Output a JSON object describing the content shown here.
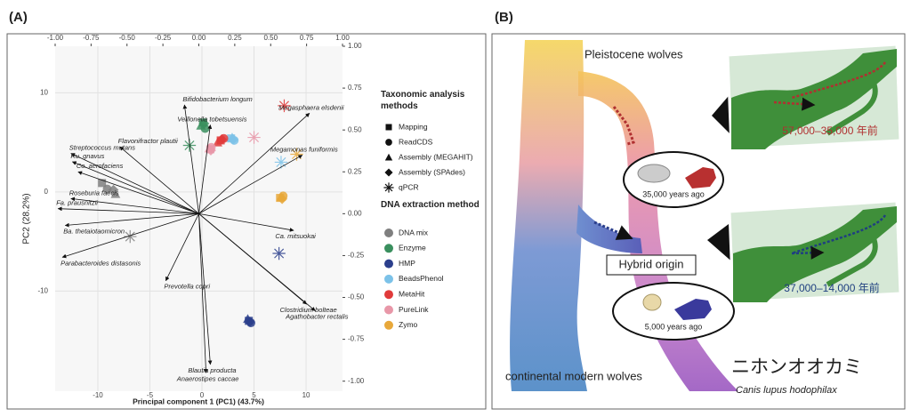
{
  "panel_labels": [
    "(A)",
    "(B)"
  ],
  "chart_data": {
    "type": "biplot",
    "xlabel": "Principal component 1 (PC1) (43.7%)",
    "ylabel": "PC2 (28.2%)",
    "xlim": [
      -14.1,
      13.5
    ],
    "ylim": [
      -20.1,
      14.7
    ],
    "xticks": [
      -10,
      -5,
      0,
      5,
      10
    ],
    "yticks": [
      -10,
      0,
      10
    ],
    "x2lim": [
      -1,
      1
    ],
    "y2lim": [
      -1.06,
      1
    ],
    "x2ticks": [
      {
        "value": -1,
        "label": "-1.00"
      },
      {
        "value": -0.75,
        "label": "-0.75"
      },
      {
        "value": -0.5,
        "label": "-0.50"
      },
      {
        "value": -0.25,
        "label": "-0.25"
      },
      {
        "value": 0,
        "label": "0.00"
      },
      {
        "value": 0.25,
        "label": "0.25"
      },
      {
        "value": 0.5,
        "label": "0.50"
      },
      {
        "value": 0.75,
        "label": "0.75"
      },
      {
        "value": 1,
        "label": "1.00"
      }
    ],
    "y2ticks": [
      {
        "value": 1,
        "label": "1.00"
      },
      {
        "value": 0.75,
        "label": "0.75"
      },
      {
        "value": 0.5,
        "label": "0.50"
      },
      {
        "value": 0.25,
        "label": "0.25"
      },
      {
        "value": 0,
        "label": "0.00"
      },
      {
        "value": -0.25,
        "label": "-0.25"
      },
      {
        "value": -0.5,
        "label": "-0.50"
      },
      {
        "value": -0.75,
        "label": "-0.75"
      },
      {
        "value": -1,
        "label": "-1.00"
      }
    ],
    "grid": true,
    "methods": {
      "title": "Taxonomic analysis methods",
      "names": [
        "Mapping",
        "ReadCDS",
        "Assembly (MEGAHIT)",
        "Assembly (SPAdes)",
        "qPCR"
      ]
    },
    "extraction_title": "DNA extraction method",
    "series": [
      {
        "name": "DNA mix",
        "color": "#7f7f7f",
        "x": [
          -9.6,
          -9.1,
          -8.3,
          -8.5,
          -6.9
        ],
        "y": [
          0.9,
          0.3,
          -0.2,
          0.2,
          -4.5
        ],
        "method": [
          0,
          1,
          2,
          3,
          4
        ]
      },
      {
        "name": "Enzyme",
        "color": "#3a8f5e",
        "x": [
          0.1,
          0.3,
          -0.1,
          0.2,
          -1.2
        ],
        "y": [
          7.0,
          6.4,
          6.7,
          6.9,
          4.7
        ],
        "method": [
          0,
          1,
          2,
          3,
          4
        ]
      },
      {
        "name": "HMP",
        "color": "#2b3f8c",
        "x": [
          4.5,
          4.7,
          4.4,
          4.6,
          7.4
        ],
        "y": [
          -13.0,
          -13.2,
          -12.8,
          -13.1,
          -6.2
        ],
        "method": [
          0,
          1,
          2,
          3,
          4
        ]
      },
      {
        "name": "BeadsPhenol",
        "color": "#7cc2e8",
        "x": [
          2.8,
          3.1,
          2.9,
          3.0,
          7.6
        ],
        "y": [
          5.4,
          5.2,
          5.5,
          5.3,
          3.0
        ],
        "method": [
          0,
          1,
          2,
          3,
          4
        ]
      },
      {
        "name": "MetaHit",
        "color": "#e03a3a",
        "x": [
          1.8,
          2.1,
          1.5,
          1.9,
          7.9
        ],
        "y": [
          5.2,
          5.4,
          5.0,
          5.3,
          8.7
        ],
        "method": [
          0,
          1,
          2,
          3,
          4
        ]
      },
      {
        "name": "PureLink",
        "color": "#e897a8",
        "x": [
          0.8,
          0.9,
          0.7,
          0.85,
          5.0
        ],
        "y": [
          4.3,
          4.5,
          4.4,
          4.2,
          5.5
        ],
        "method": [
          0,
          1,
          2,
          3,
          4
        ]
      },
      {
        "name": "Zymo",
        "color": "#e8a83a",
        "x": [
          7.5,
          7.8,
          7.6,
          7.7,
          9.1
        ],
        "y": [
          -0.6,
          -0.4,
          -0.5,
          -0.7,
          3.8
        ],
        "method": [
          0,
          1,
          2,
          3,
          4
        ]
      }
    ],
    "loadings": [
      {
        "name": "Bifidobacterium longum",
        "x": -0.1,
        "y": 0.65
      },
      {
        "name": "Veillonella tobetsuensis",
        "x": 0.08,
        "y": 0.53
      },
      {
        "name": "Megasphaera elsdenii",
        "x": 0.77,
        "y": 0.6
      },
      {
        "name": "Flavonifractor plautii",
        "x": -0.55,
        "y": 0.4
      },
      {
        "name": "Streptococcus mutans",
        "x": -0.89,
        "y": 0.36
      },
      {
        "name": "Megamonas funiformis",
        "x": 0.72,
        "y": 0.35
      },
      {
        "name": "Ru. gnavus",
        "x": -0.88,
        "y": 0.31
      },
      {
        "name": "Co. aerofaciens",
        "x": -0.84,
        "y": 0.25
      },
      {
        "name": "Roseburia faecis",
        "x": -0.89,
        "y": 0.09
      },
      {
        "name": "Fa. prausnitzii",
        "x": -0.98,
        "y": 0.03
      },
      {
        "name": "Ba. thetaiotaomicron",
        "x": -0.93,
        "y": -0.07
      },
      {
        "name": "Ca. mitsuokai",
        "x": 0.66,
        "y": -0.1
      },
      {
        "name": "Parabacteroides distasonis",
        "x": -0.95,
        "y": -0.26
      },
      {
        "name": "Prevotella copri",
        "x": -0.23,
        "y": -0.4
      },
      {
        "name": "Clostridium bolteae",
        "x": 0.75,
        "y": -0.54
      },
      {
        "name": "Agathobacter rectalis",
        "x": 0.81,
        "y": -0.58
      },
      {
        "name": "Anaerostipes caccae",
        "x": 0.05,
        "y": -0.95
      },
      {
        "name": "Blautia producta",
        "x": 0.08,
        "y": -0.9
      }
    ]
  },
  "diagram": {
    "pleistocene": "Pleistocene wolves",
    "range1": "57,000–35,000 年前",
    "age1": "35,000 years ago",
    "hybrid": "Hybrid origin",
    "range2": "37,000–14,000 年前",
    "age2": "5,000 years ago",
    "continental": "continental modern wolves",
    "japanese_name": "ニホンオオカミ",
    "scientific_name": "Canis lupus hodophilax"
  }
}
